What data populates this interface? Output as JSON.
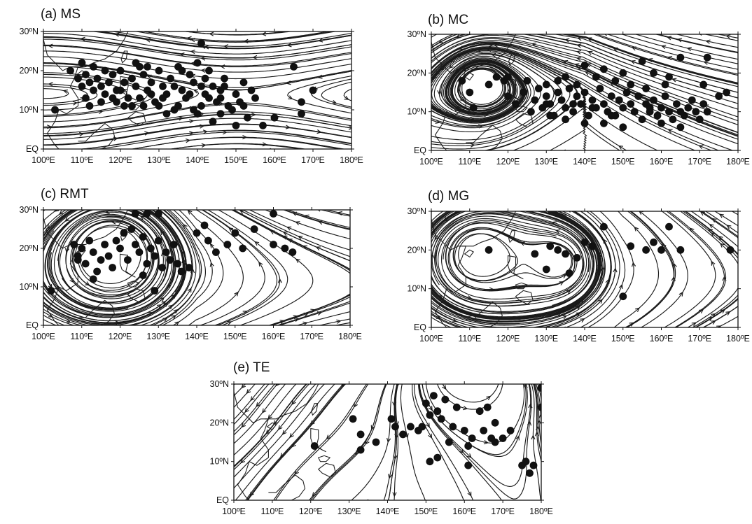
{
  "figure": {
    "panels": [
      {
        "id": "a",
        "title": "(a) MS",
        "lat_labels": [
          "30ºN",
          "20ºN",
          "10ºN",
          "EQ"
        ],
        "lon_labels": [
          "100ºE",
          "110ºE",
          "120ºE",
          "130ºE",
          "140ºE",
          "150ºE",
          "160ºE",
          "170ºE",
          "180ºE"
        ],
        "lon_range": [
          100,
          180
        ],
        "lat_range": [
          0,
          30
        ],
        "flow": "monsoon-shear",
        "tc_genesis_points": [
          [
            107,
            20
          ],
          [
            109,
            18
          ],
          [
            110,
            16
          ],
          [
            111,
            19
          ],
          [
            112,
            17
          ],
          [
            113,
            15
          ],
          [
            114,
            18
          ],
          [
            115,
            16
          ],
          [
            116,
            14
          ],
          [
            117,
            17
          ],
          [
            118,
            19
          ],
          [
            119,
            15
          ],
          [
            120,
            20
          ],
          [
            121,
            17
          ],
          [
            122,
            13
          ],
          [
            123,
            18
          ],
          [
            124,
            16
          ],
          [
            125,
            21
          ],
          [
            126,
            19
          ],
          [
            127,
            15
          ],
          [
            128,
            17
          ],
          [
            129,
            12
          ],
          [
            130,
            20
          ],
          [
            131,
            16
          ],
          [
            132,
            14
          ],
          [
            133,
            18
          ],
          [
            134,
            10
          ],
          [
            135,
            21
          ],
          [
            136,
            15
          ],
          [
            137,
            13
          ],
          [
            138,
            19
          ],
          [
            139,
            17
          ],
          [
            140,
            9
          ],
          [
            141,
            16
          ],
          [
            142,
            14
          ],
          [
            143,
            20
          ],
          [
            144,
            7
          ],
          [
            145,
            12
          ],
          [
            146,
            15
          ],
          [
            147,
            18
          ],
          [
            149,
            10
          ],
          [
            151,
            12
          ],
          [
            152,
            17
          ],
          [
            153,
            8
          ],
          [
            155,
            13
          ],
          [
            157,
            6
          ],
          [
            160,
            8
          ],
          [
            165,
            21
          ],
          [
            167,
            9
          ],
          [
            170,
            15
          ],
          [
            111,
            13
          ],
          [
            113,
            21
          ],
          [
            115,
            12
          ],
          [
            118,
            13
          ],
          [
            121,
            11
          ],
          [
            124,
            22
          ],
          [
            126,
            11
          ],
          [
            128,
            14
          ],
          [
            130,
            11
          ],
          [
            132,
            9
          ],
          [
            134,
            16
          ],
          [
            136,
            20
          ],
          [
            138,
            14
          ],
          [
            140,
            22
          ],
          [
            142,
            18
          ],
          [
            144,
            16
          ],
          [
            146,
            13
          ],
          [
            148,
            11
          ],
          [
            150,
            14
          ],
          [
            152,
            11
          ],
          [
            110,
            22
          ],
          [
            112,
            11
          ],
          [
            120,
            15
          ],
          [
            125,
            13
          ],
          [
            135,
            11
          ],
          [
            141,
            11
          ],
          [
            146,
            9
          ],
          [
            150,
            6
          ],
          [
            154,
            15
          ],
          [
            167,
            12
          ],
          [
            116,
            20
          ],
          [
            119,
            12
          ],
          [
            123,
            11
          ],
          [
            127,
            21
          ],
          [
            131,
            13
          ],
          [
            139,
            10
          ],
          [
            143,
            13
          ],
          [
            147,
            16
          ],
          [
            103,
            10
          ],
          [
            141,
            27
          ]
        ]
      },
      {
        "id": "b",
        "title": "(b) MC",
        "lat_labels": [
          "30ºN",
          "20ºN",
          "10ºN",
          "EQ"
        ],
        "lon_labels": [
          "100ºE",
          "110ºE",
          "120ºE",
          "130ºE",
          "140ºE",
          "150ºE",
          "160ºE",
          "170ºE",
          "180ºE"
        ],
        "lon_range": [
          100,
          180
        ],
        "lat_range": [
          0,
          30
        ],
        "flow": "monsoon-confluence",
        "tc_genesis_points": [
          [
            108,
            18
          ],
          [
            110,
            15
          ],
          [
            111,
            11
          ],
          [
            115,
            17
          ],
          [
            117,
            19
          ],
          [
            119,
            18
          ],
          [
            120,
            14
          ],
          [
            122,
            12
          ],
          [
            124,
            15
          ],
          [
            126,
            10
          ],
          [
            127,
            13
          ],
          [
            128,
            16
          ],
          [
            129,
            11
          ],
          [
            130,
            14
          ],
          [
            131,
            12
          ],
          [
            132,
            9
          ],
          [
            133,
            15
          ],
          [
            134,
            13
          ],
          [
            135,
            11
          ],
          [
            136,
            16
          ],
          [
            137,
            10
          ],
          [
            138,
            14
          ],
          [
            139,
            12
          ],
          [
            140,
            15
          ],
          [
            141,
            9
          ],
          [
            142,
            13
          ],
          [
            143,
            11
          ],
          [
            144,
            16
          ],
          [
            145,
            12
          ],
          [
            146,
            10
          ],
          [
            147,
            14
          ],
          [
            148,
            9
          ],
          [
            149,
            13
          ],
          [
            150,
            11
          ],
          [
            151,
            15
          ],
          [
            152,
            12
          ],
          [
            153,
            10
          ],
          [
            154,
            14
          ],
          [
            155,
            8
          ],
          [
            156,
            12
          ],
          [
            157,
            10
          ],
          [
            158,
            13
          ],
          [
            159,
            9
          ],
          [
            160,
            11
          ],
          [
            161,
            14
          ],
          [
            162,
            10
          ],
          [
            163,
            8
          ],
          [
            164,
            12
          ],
          [
            165,
            10
          ],
          [
            166,
            9
          ],
          [
            167,
            11
          ],
          [
            168,
            13
          ],
          [
            169,
            10
          ],
          [
            170,
            8
          ],
          [
            171,
            12
          ],
          [
            172,
            10
          ],
          [
            175,
            14
          ],
          [
            177,
            15
          ],
          [
            171,
            17
          ],
          [
            165,
            24
          ],
          [
            172,
            24
          ],
          [
            155,
            23
          ],
          [
            150,
            20
          ],
          [
            145,
            21
          ],
          [
            140,
            22
          ],
          [
            135,
            19
          ],
          [
            130,
            17
          ],
          [
            125,
            18
          ],
          [
            120,
            19
          ],
          [
            158,
            20
          ],
          [
            148,
            18
          ],
          [
            152,
            17
          ],
          [
            143,
            19
          ],
          [
            138,
            17
          ],
          [
            133,
            18
          ],
          [
            162,
            19
          ],
          [
            156,
            16
          ],
          [
            161,
            17
          ],
          [
            131,
            9
          ],
          [
            135,
            8
          ],
          [
            140,
            7
          ],
          [
            145,
            7
          ],
          [
            150,
            6
          ],
          [
            160,
            7
          ],
          [
            165,
            6
          ],
          [
            147,
            9
          ],
          [
            137,
            12
          ],
          [
            142,
            11
          ],
          [
            157,
            11
          ],
          [
            130,
            12
          ]
        ]
      },
      {
        "id": "c",
        "title": "(c) RMT",
        "lat_labels": [
          "30ºN",
          "20ºN",
          "10ºN",
          "EQ"
        ],
        "lon_labels": [
          "100ºE",
          "110ºE",
          "120ºE",
          "130ºE",
          "140ºE",
          "150ºE",
          "160ºE",
          "170ºE",
          "180ºE"
        ],
        "lon_range": [
          100,
          180
        ],
        "lat_range": [
          0,
          30
        ],
        "flow": "reverse-oriented monsoon trough",
        "tc_genesis_points": [
          [
            102,
            9
          ],
          [
            108,
            21
          ],
          [
            109,
            18
          ],
          [
            110,
            20
          ],
          [
            111,
            16
          ],
          [
            112,
            22
          ],
          [
            113,
            19
          ],
          [
            114,
            14
          ],
          [
            115,
            17
          ],
          [
            116,
            21
          ],
          [
            117,
            18
          ],
          [
            118,
            15
          ],
          [
            119,
            22
          ],
          [
            120,
            20
          ],
          [
            121,
            24
          ],
          [
            122,
            17
          ],
          [
            123,
            25
          ],
          [
            124,
            21
          ],
          [
            125,
            19
          ],
          [
            126,
            23
          ],
          [
            127,
            16
          ],
          [
            128,
            20
          ],
          [
            129,
            18
          ],
          [
            130,
            22
          ],
          [
            131,
            15
          ],
          [
            132,
            19
          ],
          [
            133,
            17
          ],
          [
            134,
            21
          ],
          [
            135,
            16
          ],
          [
            136,
            14
          ],
          [
            124,
            29
          ],
          [
            127,
            29
          ],
          [
            130,
            29
          ],
          [
            140,
            24
          ],
          [
            142,
            26
          ],
          [
            143,
            22
          ],
          [
            145,
            19
          ],
          [
            148,
            21
          ],
          [
            150,
            24
          ],
          [
            152,
            20
          ],
          [
            155,
            25
          ],
          [
            160,
            21
          ],
          [
            163,
            20
          ],
          [
            165,
            19
          ],
          [
            160,
            29
          ],
          [
            113,
            12
          ],
          [
            126,
            13
          ],
          [
            129,
            9
          ],
          [
            138,
            15
          ],
          [
            109,
            17
          ]
        ]
      },
      {
        "id": "d",
        "title": "(d) MG",
        "lat_labels": [
          "30ºN",
          "20ºN",
          "10ºN",
          "EQ"
        ],
        "lon_labels": [
          "100ºE",
          "110ºE",
          "120ºE",
          "130ºE",
          "140ºE",
          "150ºE",
          "160ºE",
          "170ºE",
          "180ºE"
        ],
        "lon_range": [
          100,
          180
        ],
        "lat_range": [
          0,
          30
        ],
        "flow": "monsoon gyre",
        "tc_genesis_points": [
          [
            115,
            20
          ],
          [
            127,
            19
          ],
          [
            130,
            15
          ],
          [
            131,
            21
          ],
          [
            133,
            20
          ],
          [
            135,
            19
          ],
          [
            136,
            14
          ],
          [
            138,
            18
          ],
          [
            140,
            22
          ],
          [
            142,
            21
          ],
          [
            145,
            26
          ],
          [
            152,
            21
          ],
          [
            156,
            20
          ],
          [
            158,
            22
          ],
          [
            160,
            20
          ],
          [
            162,
            26
          ],
          [
            165,
            20
          ],
          [
            178,
            20
          ],
          [
            150,
            8
          ]
        ]
      },
      {
        "id": "e",
        "title": "(e) TE",
        "lat_labels": [
          "30ºN",
          "20ºN",
          "10ºN",
          "EQ"
        ],
        "lon_labels": [
          "100ºE",
          "110ºE",
          "120ºE",
          "130ºE",
          "140ºE",
          "150ºE",
          "160ºE",
          "170ºE",
          "180ºE"
        ],
        "lon_range": [
          100,
          180
        ],
        "lat_range": [
          0,
          30
        ],
        "flow": "easterly waves",
        "tc_genesis_points": [
          [
            121,
            14
          ],
          [
            131,
            21
          ],
          [
            133,
            17
          ],
          [
            137,
            15
          ],
          [
            133,
            13
          ],
          [
            141,
            21
          ],
          [
            142,
            19
          ],
          [
            146,
            19
          ],
          [
            148,
            18
          ],
          [
            150,
            25
          ],
          [
            151,
            22
          ],
          [
            152,
            27
          ],
          [
            153,
            23
          ],
          [
            154,
            21
          ],
          [
            155,
            26
          ],
          [
            156,
            15
          ],
          [
            157,
            19
          ],
          [
            158,
            24
          ],
          [
            160,
            18
          ],
          [
            161,
            14
          ],
          [
            162,
            16
          ],
          [
            164,
            23
          ],
          [
            165,
            18
          ],
          [
            166,
            24
          ],
          [
            167,
            16
          ],
          [
            168,
            15
          ],
          [
            172,
            18
          ],
          [
            175,
            9
          ],
          [
            176,
            10
          ],
          [
            178,
            9
          ],
          [
            180,
            24
          ],
          [
            180,
            29
          ],
          [
            177,
            7
          ],
          [
            151,
            10
          ],
          [
            153,
            11
          ],
          [
            161,
            9
          ],
          [
            170,
            16
          ],
          [
            168,
            20
          ],
          [
            149,
            19
          ],
          [
            144,
            17
          ]
        ]
      }
    ]
  }
}
